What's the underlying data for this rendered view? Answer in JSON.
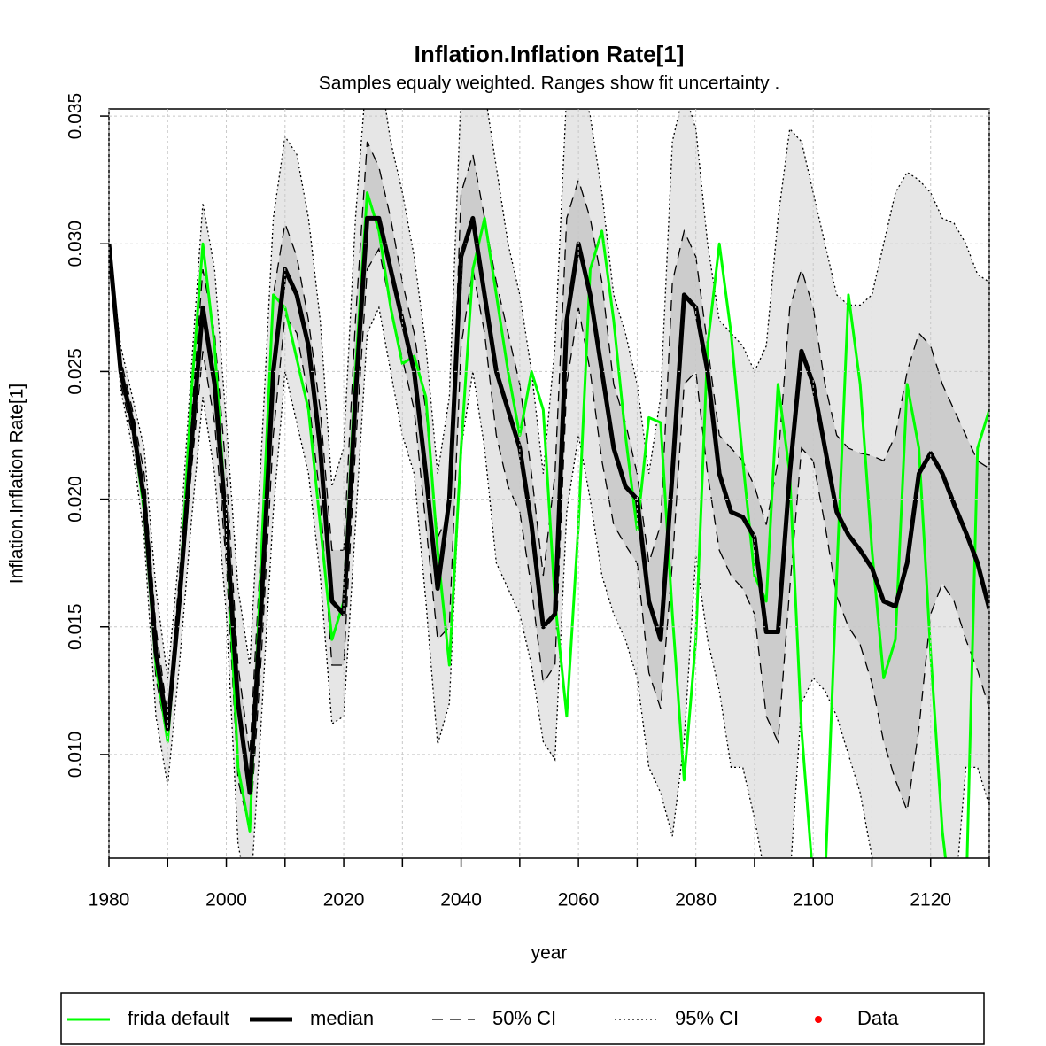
{
  "chart_data": {
    "type": "line",
    "title": "Inflation.Inflation Rate[1]",
    "subtitle": "Samples equaly weighted. Ranges show  fit uncertainty .",
    "xlabel": "year",
    "ylabel": "Inflation.Inflation Rate[1]",
    "xlim": [
      1980,
      2130
    ],
    "ylim": [
      0.00594,
      0.03528
    ],
    "xticks": [
      1980,
      2000,
      2020,
      2040,
      2060,
      2080,
      2100,
      2120
    ],
    "minor_xticks": [
      1990,
      2010,
      2030,
      2050,
      2070,
      2090,
      2110,
      2130
    ],
    "yticks": [
      {
        "value": 0.01,
        "label": "0.010"
      },
      {
        "value": 0.015,
        "label": "0.015"
      },
      {
        "value": 0.02,
        "label": "0.020"
      },
      {
        "value": 0.025,
        "label": "0.025"
      },
      {
        "value": 0.03,
        "label": "0.030"
      },
      {
        "value": 0.035,
        "label": "0.035"
      }
    ],
    "grid": true,
    "x": [
      1980,
      1982,
      1984,
      1986,
      1988,
      1990,
      1992,
      1994,
      1996,
      1998,
      2000,
      2002,
      2004,
      2006,
      2008,
      2010,
      2012,
      2014,
      2016,
      2018,
      2020,
      2022,
      2024,
      2026,
      2028,
      2030,
      2032,
      2034,
      2036,
      2038,
      2040,
      2042,
      2044,
      2046,
      2048,
      2050,
      2052,
      2054,
      2056,
      2058,
      2060,
      2062,
      2064,
      2066,
      2068,
      2070,
      2072,
      2074,
      2076,
      2078,
      2080,
      2082,
      2084,
      2086,
      2088,
      2090,
      2092,
      2094,
      2096,
      2098,
      2100,
      2102,
      2104,
      2106,
      2108,
      2110,
      2112,
      2114,
      2116,
      2118,
      2120,
      2122,
      2124,
      2126,
      2128,
      2130
    ],
    "bands": [
      {
        "name": "95% CI",
        "fill": "#e6e6e6",
        "dash": "dotted",
        "upper": [
          0.03,
          0.026,
          0.024,
          0.022,
          0.0165,
          0.013,
          0.018,
          0.025,
          0.0316,
          0.029,
          0.023,
          0.0165,
          0.0135,
          0.022,
          0.031,
          0.0342,
          0.0335,
          0.031,
          0.027,
          0.0205,
          0.022,
          0.031,
          0.037,
          0.037,
          0.034,
          0.032,
          0.0295,
          0.026,
          0.021,
          0.024,
          0.036,
          0.038,
          0.036,
          0.033,
          0.03,
          0.028,
          0.025,
          0.021,
          0.026,
          0.036,
          0.037,
          0.035,
          0.032,
          0.028,
          0.0265,
          0.0245,
          0.021,
          0.024,
          0.034,
          0.036,
          0.0345,
          0.03,
          0.027,
          0.0265,
          0.026,
          0.025,
          0.026,
          0.031,
          0.0345,
          0.034,
          0.032,
          0.03,
          0.028,
          0.0276,
          0.0276,
          0.028,
          0.03,
          0.032,
          0.0328,
          0.0325,
          0.032,
          0.031,
          0.0308,
          0.03,
          0.0288,
          0.0285
        ],
        "lower": [
          0.03,
          0.0243,
          0.022,
          0.0185,
          0.0115,
          0.0088,
          0.0135,
          0.019,
          0.024,
          0.021,
          0.0155,
          0.0065,
          0.004,
          0.0115,
          0.0195,
          0.025,
          0.023,
          0.021,
          0.017,
          0.0112,
          0.0115,
          0.019,
          0.0265,
          0.0275,
          0.025,
          0.0225,
          0.021,
          0.016,
          0.0104,
          0.012,
          0.022,
          0.025,
          0.022,
          0.0175,
          0.0165,
          0.0155,
          0.0135,
          0.0105,
          0.0098,
          0.0195,
          0.0225,
          0.02,
          0.017,
          0.0155,
          0.0145,
          0.013,
          0.0095,
          0.0085,
          0.0068,
          0.0105,
          0.0178,
          0.0145,
          0.0125,
          0.0095,
          0.0095,
          0.0075,
          0.005,
          0.004,
          0.005,
          0.012,
          0.013,
          0.0125,
          0.0115,
          0.01,
          0.0085,
          0.006,
          0.004,
          0.003,
          0.0025,
          0.0035,
          0.005,
          0.005,
          0.004,
          0.0095,
          0.0095,
          0.008
        ]
      },
      {
        "name": "50% CI",
        "fill": "#cccccc",
        "dash": "dashed",
        "upper": [
          0.03,
          0.0255,
          0.0235,
          0.021,
          0.015,
          0.0115,
          0.017,
          0.023,
          0.029,
          0.0265,
          0.021,
          0.0135,
          0.01,
          0.0185,
          0.028,
          0.0308,
          0.0295,
          0.027,
          0.0235,
          0.018,
          0.018,
          0.027,
          0.034,
          0.033,
          0.031,
          0.0285,
          0.0265,
          0.0235,
          0.0185,
          0.0195,
          0.032,
          0.0335,
          0.031,
          0.0285,
          0.0265,
          0.0245,
          0.021,
          0.017,
          0.021,
          0.031,
          0.0325,
          0.031,
          0.0285,
          0.0245,
          0.023,
          0.021,
          0.0175,
          0.019,
          0.0285,
          0.0305,
          0.0295,
          0.026,
          0.0225,
          0.022,
          0.0215,
          0.0205,
          0.019,
          0.0215,
          0.0275,
          0.029,
          0.0275,
          0.0245,
          0.0225,
          0.022,
          0.0218,
          0.0217,
          0.0215,
          0.0225,
          0.025,
          0.0265,
          0.026,
          0.0245,
          0.0235,
          0.0225,
          0.0215,
          0.0212
        ],
        "lower": [
          0.03,
          0.0245,
          0.0225,
          0.0195,
          0.013,
          0.0105,
          0.0155,
          0.021,
          0.0258,
          0.023,
          0.0175,
          0.009,
          0.007,
          0.014,
          0.0225,
          0.0272,
          0.0265,
          0.024,
          0.02,
          0.0135,
          0.0135,
          0.022,
          0.029,
          0.0298,
          0.0275,
          0.0255,
          0.0235,
          0.019,
          0.0145,
          0.015,
          0.026,
          0.029,
          0.0265,
          0.0225,
          0.0205,
          0.0195,
          0.0165,
          0.0128,
          0.0135,
          0.0245,
          0.0275,
          0.025,
          0.0215,
          0.019,
          0.0182,
          0.0175,
          0.0132,
          0.0118,
          0.0175,
          0.0245,
          0.025,
          0.021,
          0.018,
          0.017,
          0.0165,
          0.0155,
          0.0115,
          0.0105,
          0.0165,
          0.022,
          0.0215,
          0.019,
          0.0162,
          0.015,
          0.0143,
          0.0128,
          0.0105,
          0.009,
          0.0078,
          0.011,
          0.0155,
          0.0167,
          0.016,
          0.0145,
          0.0133,
          0.0118
        ]
      }
    ],
    "series": [
      {
        "name": "frida default",
        "color": "#00ff00",
        "width": 3,
        "values": [
          0.03,
          0.025,
          0.023,
          0.0195,
          0.0135,
          0.0105,
          0.016,
          0.024,
          0.03,
          0.026,
          0.019,
          0.0095,
          0.007,
          0.018,
          0.028,
          0.0275,
          0.0255,
          0.0235,
          0.019,
          0.0145,
          0.016,
          0.025,
          0.032,
          0.0305,
          0.0275,
          0.0253,
          0.0256,
          0.024,
          0.018,
          0.0135,
          0.022,
          0.029,
          0.031,
          0.028,
          0.025,
          0.0225,
          0.025,
          0.0235,
          0.016,
          0.0115,
          0.019,
          0.029,
          0.0305,
          0.027,
          0.0225,
          0.0188,
          0.0232,
          0.023,
          0.0155,
          0.009,
          0.0145,
          0.026,
          0.03,
          0.0265,
          0.0215,
          0.017,
          0.016,
          0.0245,
          0.021,
          0.011,
          0.005,
          0.005,
          0.017,
          0.028,
          0.0245,
          0.018,
          0.013,
          0.0145,
          0.0245,
          0.022,
          0.014,
          0.007,
          0.003,
          0.004,
          0.022,
          0.0235
        ]
      },
      {
        "name": "median",
        "color": "#000000",
        "width": 5,
        "values": [
          0.03,
          0.025,
          0.023,
          0.02,
          0.014,
          0.011,
          0.016,
          0.022,
          0.0275,
          0.0245,
          0.019,
          0.012,
          0.0085,
          0.016,
          0.025,
          0.029,
          0.028,
          0.026,
          0.022,
          0.016,
          0.0155,
          0.024,
          0.031,
          0.031,
          0.029,
          0.027,
          0.025,
          0.021,
          0.0165,
          0.02,
          0.0295,
          0.031,
          0.028,
          0.025,
          0.0235,
          0.022,
          0.019,
          0.015,
          0.0155,
          0.027,
          0.03,
          0.028,
          0.025,
          0.022,
          0.0205,
          0.02,
          0.016,
          0.0145,
          0.021,
          0.028,
          0.0275,
          0.025,
          0.021,
          0.0195,
          0.0193,
          0.0185,
          0.0148,
          0.0148,
          0.021,
          0.0258,
          0.0245,
          0.022,
          0.0195,
          0.0186,
          0.018,
          0.0173,
          0.016,
          0.0158,
          0.0175,
          0.021,
          0.0218,
          0.021,
          0.0198,
          0.0187,
          0.0175,
          0.0157
        ]
      },
      {
        "name": "Data",
        "color": "#ff0000",
        "marker": "point",
        "values": [
          null,
          null,
          null,
          null,
          null,
          null,
          null,
          null,
          null,
          null,
          null,
          null,
          null,
          null,
          null,
          null,
          null,
          null,
          null,
          null,
          null,
          null,
          null,
          null,
          null,
          null,
          null,
          null,
          null,
          null,
          null,
          null,
          null,
          null,
          null,
          null,
          null,
          null,
          null,
          null,
          null,
          null,
          null,
          null,
          null,
          null,
          null,
          null,
          null,
          null,
          null,
          null,
          null,
          null,
          null,
          null,
          null,
          null,
          null,
          null,
          null,
          null,
          null,
          null,
          null,
          null,
          null,
          null,
          null,
          null,
          null,
          null,
          null,
          null,
          null,
          null
        ]
      }
    ]
  }
}
